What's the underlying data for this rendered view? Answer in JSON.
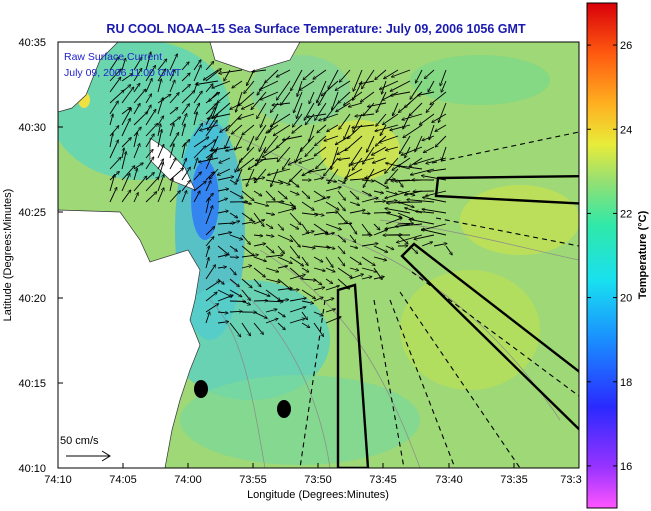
{
  "title": "RU COOL  NOAA–15  Sea Surface Temperature:  July 09, 2006 1056 GMT",
  "legend": {
    "line1": "Raw Surface Current",
    "line2": "July 09, 2006 11:00 GMT"
  },
  "scale_label": "50 cm/s",
  "x_axis": {
    "label": "Longitude (Degrees:Minutes)",
    "ticks": [
      "74:10",
      "74:05",
      "74:00",
      "73:55",
      "73:50",
      "73:45",
      "73:40",
      "73:35",
      "73:3"
    ]
  },
  "y_axis": {
    "label": "Latitude (Degrees:Minutes)",
    "ticks": [
      "40:35",
      "40:30",
      "40:25",
      "40:20",
      "40:15",
      "40:10"
    ]
  },
  "colorbar": {
    "label": "Temperature (°C)",
    "ticks": [
      "26",
      "24",
      "22",
      "20",
      "18",
      "16"
    ],
    "min": 15,
    "max": 27
  },
  "colors": {
    "ocean": "#9fd876",
    "land": "#ffffff",
    "title": "#1a1ab0"
  }
}
